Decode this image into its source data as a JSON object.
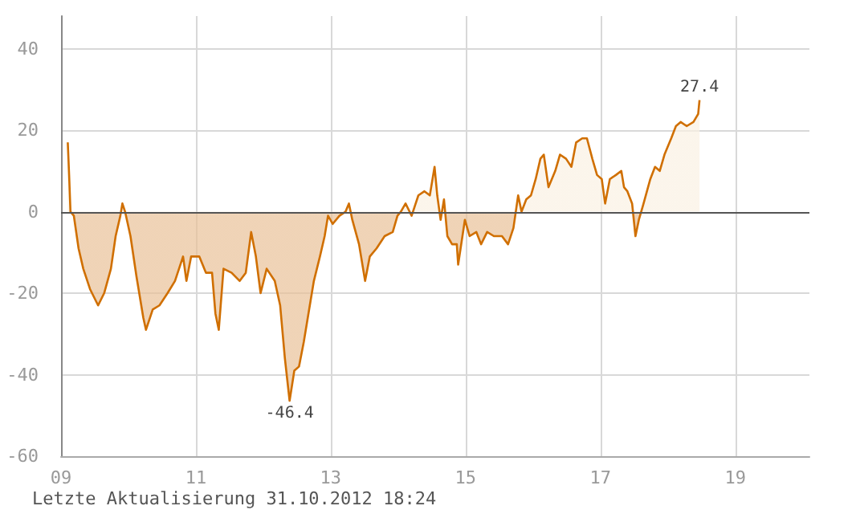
{
  "chart_data": {
    "type": "area",
    "x": [
      9.1,
      9.12,
      9.14,
      9.19,
      9.26,
      9.33,
      9.43,
      9.55,
      9.64,
      9.74,
      9.81,
      9.88,
      9.91,
      9.95,
      10.03,
      10.12,
      10.22,
      10.26,
      10.36,
      10.46,
      10.58,
      10.69,
      10.81,
      10.86,
      10.93,
      11.05,
      11.15,
      11.24,
      11.29,
      11.34,
      11.41,
      11.53,
      11.65,
      11.74,
      11.82,
      11.89,
      11.96,
      12.05,
      12.17,
      12.25,
      12.32,
      12.39,
      12.46,
      12.53,
      12.6,
      12.68,
      12.75,
      12.84,
      12.91,
      12.96,
      13.03,
      13.13,
      13.22,
      13.27,
      13.32,
      13.42,
      13.51,
      13.58,
      13.68,
      13.8,
      13.92,
      13.99,
      14.04,
      14.11,
      14.2,
      14.3,
      14.39,
      14.47,
      14.54,
      14.58,
      14.63,
      14.68,
      14.73,
      14.8,
      14.87,
      14.89,
      14.99,
      15.06,
      15.16,
      15.23,
      15.32,
      15.42,
      15.54,
      15.63,
      15.71,
      15.78,
      15.83,
      15.9,
      15.97,
      16.04,
      16.11,
      16.16,
      16.23,
      16.33,
      16.4,
      16.49,
      16.57,
      16.64,
      16.73,
      16.8,
      16.88,
      16.95,
      17.02,
      17.07,
      17.14,
      17.23,
      17.31,
      17.35,
      17.4,
      17.47,
      17.52,
      17.57,
      17.64,
      17.69,
      17.74,
      17.81,
      17.88,
      17.95,
      18.05,
      18.12,
      18.19,
      18.28,
      18.38,
      18.45,
      18.47
    ],
    "series": [
      {
        "color": "#d06f00",
        "values": [
          17,
          9,
          0,
          -1,
          -9,
          -14,
          -19,
          -23,
          -20,
          -14,
          -6,
          -1,
          2,
          0,
          -6,
          -16,
          -26,
          -29,
          -24,
          -23,
          -20,
          -17,
          -11,
          -17,
          -11,
          -11,
          -15,
          -15,
          -25,
          -29,
          -14,
          -15,
          -17,
          -15,
          -5,
          -11,
          -20,
          -14,
          -17,
          -23,
          -36,
          -46.4,
          -39,
          -38,
          -32,
          -24,
          -17,
          -11,
          -6,
          -1,
          -3,
          -1,
          0,
          2,
          -2,
          -8,
          -17,
          -11,
          -9,
          -6,
          -5,
          -1,
          0,
          2,
          -1,
          4,
          5,
          4,
          11,
          4,
          -2,
          3,
          -6,
          -8,
          -8,
          -13,
          -2,
          -6,
          -5,
          -8,
          -5,
          -6,
          -6,
          -8,
          -4,
          4,
          0,
          3,
          4,
          8,
          13,
          14,
          6,
          10,
          14,
          13,
          11,
          17,
          18,
          18,
          13,
          9,
          8,
          2,
          8,
          9,
          10,
          6,
          5,
          2,
          -6,
          -2,
          2,
          5,
          8,
          11,
          10,
          14,
          18,
          21,
          22,
          21,
          22,
          24,
          27.4
        ]
      }
    ],
    "xlim": [
      9,
      20.1
    ],
    "xticks": [
      {
        "value": 9,
        "label": "09"
      },
      11,
      13,
      15,
      17,
      19
    ],
    "ylim": [
      -60,
      48
    ],
    "yticks": [
      -60,
      -40,
      -20,
      0,
      20,
      40
    ],
    "grid": true,
    "marker": "none",
    "ref_lines": [
      {
        "axis": "y",
        "value": 0,
        "color": "#555555"
      }
    ],
    "annotations": [
      {
        "text": "-46.4",
        "x": 12.39,
        "y": -46.4
      },
      {
        "text": "27.4",
        "x": 18.47,
        "y": 27.4
      },
      "Letzte Aktualisierung 31.10.2012 18:24"
    ]
  }
}
